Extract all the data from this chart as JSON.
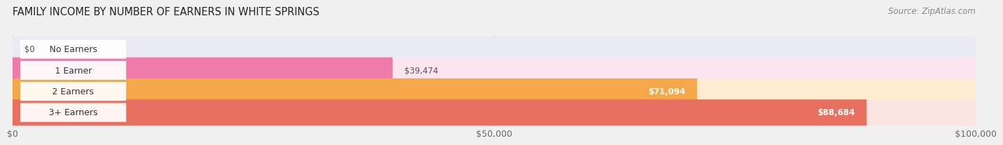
{
  "title": "FAMILY INCOME BY NUMBER OF EARNERS IN WHITE SPRINGS",
  "source": "Source: ZipAtlas.com",
  "categories": [
    "No Earners",
    "1 Earner",
    "2 Earners",
    "3+ Earners"
  ],
  "values": [
    0,
    39474,
    71094,
    88684
  ],
  "labels": [
    "$0",
    "$39,474",
    "$71,094",
    "$88,684"
  ],
  "label_inside": [
    false,
    false,
    true,
    true
  ],
  "bar_colors": [
    "#a8a4d0",
    "#f07aaa",
    "#f5a84a",
    "#e87060"
  ],
  "bar_bg_colors": [
    "#eaeaf4",
    "#fce4ee",
    "#fdecd2",
    "#fbe4e0"
  ],
  "xlim": [
    0,
    100000
  ],
  "xticks": [
    0,
    50000,
    100000
  ],
  "xtick_labels": [
    "$0",
    "$50,000",
    "$100,000"
  ],
  "title_fontsize": 10.5,
  "source_fontsize": 8.5,
  "value_fontsize": 8.5,
  "cat_fontsize": 9,
  "tick_fontsize": 9,
  "bar_height": 0.62,
  "bg_color": "#f0f0f0",
  "grid_color": "#cccccc",
  "pill_color": "white",
  "pill_text_color": "#333333",
  "value_label_dark": "#555555",
  "value_label_light": "#ffffff"
}
